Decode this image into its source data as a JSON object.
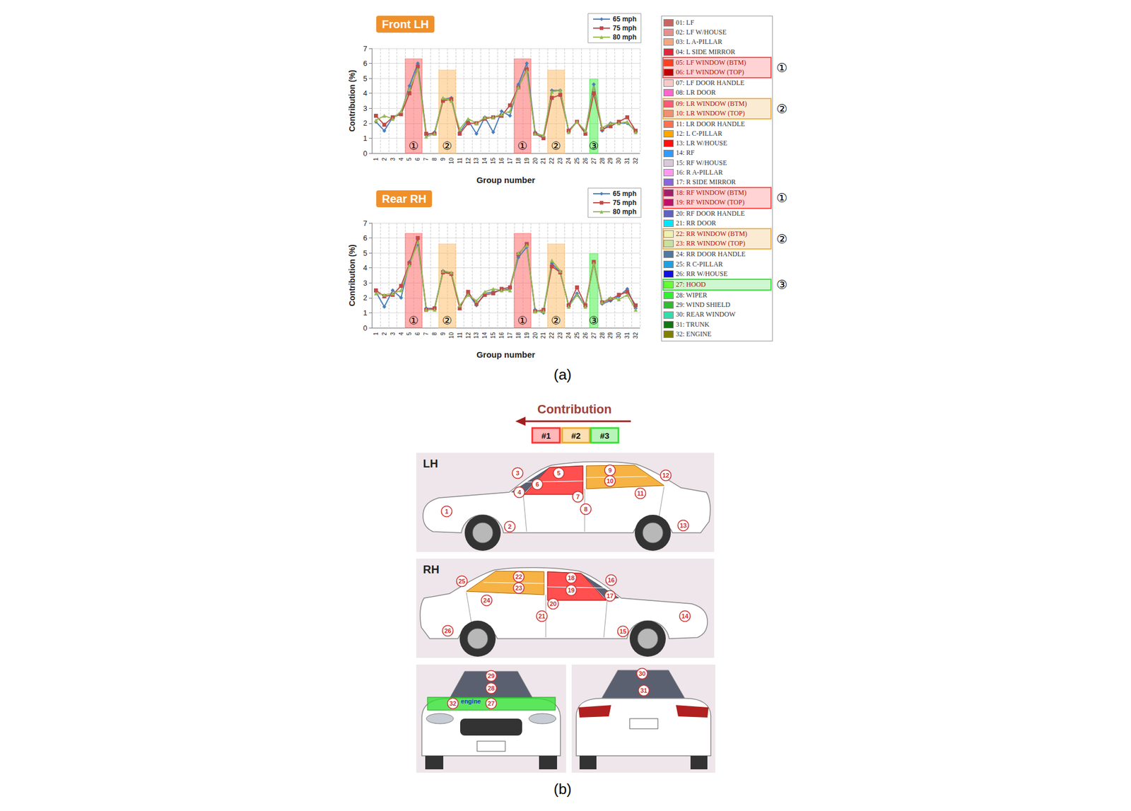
{
  "chart_data": [
    {
      "type": "line",
      "title": "Front LH",
      "xlabel": "Group number",
      "ylabel": "Contribution (%)",
      "categories": [
        "1",
        "2",
        "3",
        "4",
        "5",
        "6",
        "7",
        "8",
        "9",
        "10",
        "11",
        "12",
        "13",
        "14",
        "15",
        "16",
        "17",
        "18",
        "19",
        "20",
        "21",
        "22",
        "23",
        "24",
        "25",
        "26",
        "27",
        "28",
        "29",
        "30",
        "31",
        "32"
      ],
      "series": [
        {
          "name": "65 mph",
          "color": "#4a7ebb",
          "marker": "diamond",
          "values": [
            2.1,
            1.5,
            2.4,
            2.7,
            4.5,
            6.0,
            1.2,
            1.4,
            3.6,
            3.7,
            1.4,
            2.2,
            1.3,
            2.4,
            1.4,
            2.8,
            2.5,
            4.6,
            6.0,
            1.4,
            1.1,
            4.2,
            4.2,
            1.5,
            2.1,
            1.4,
            4.6,
            1.5,
            2.0,
            2.0,
            2.0,
            1.5
          ]
        },
        {
          "name": "75 mph",
          "color": "#be4b48",
          "marker": "square",
          "values": [
            2.5,
            1.9,
            2.4,
            2.6,
            4.0,
            5.8,
            1.3,
            1.3,
            3.5,
            3.6,
            1.3,
            2.0,
            2.0,
            2.3,
            2.4,
            2.5,
            3.2,
            4.4,
            5.6,
            1.3,
            1.0,
            3.7,
            3.9,
            1.5,
            2.1,
            1.3,
            4.0,
            1.6,
            1.8,
            2.1,
            2.4,
            1.5
          ]
        },
        {
          "name": "80 mph",
          "color": "#98b954",
          "marker": "triangle",
          "values": [
            2.2,
            2.5,
            2.3,
            2.8,
            4.3,
            5.6,
            1.1,
            1.3,
            3.7,
            3.5,
            1.6,
            2.3,
            2.0,
            2.4,
            2.4,
            2.6,
            2.8,
            4.4,
            5.5,
            1.3,
            1.2,
            4.1,
            4.2,
            1.4,
            2.1,
            1.5,
            4.4,
            1.7,
            2.0,
            2.0,
            2.1,
            1.4
          ]
        }
      ],
      "ylim": [
        0,
        7
      ],
      "yticks": [
        0,
        1,
        2,
        3,
        4,
        5,
        6,
        7
      ],
      "grid": true,
      "legend": "top-right",
      "highlights": [
        {
          "label": "①",
          "from": "5",
          "to": "6",
          "top": 6.3,
          "color": "#ff6b6b"
        },
        {
          "label": "②",
          "from": "9",
          "to": "10",
          "top": 5.55,
          "color": "#ffc070"
        },
        {
          "label": "①",
          "from": "18",
          "to": "19",
          "top": 6.3,
          "color": "#ff6b6b"
        },
        {
          "label": "②",
          "from": "22",
          "to": "23",
          "top": 5.55,
          "color": "#ffc070"
        },
        {
          "label": "③",
          "from": "27",
          "to": "27",
          "top": 4.95,
          "color": "#4cf04c"
        }
      ]
    },
    {
      "type": "line",
      "title": "Rear RH",
      "xlabel": "Group number",
      "ylabel": "Contribution (%)",
      "categories": [
        "1",
        "2",
        "3",
        "4",
        "5",
        "6",
        "7",
        "8",
        "9",
        "10",
        "11",
        "12",
        "13",
        "14",
        "15",
        "16",
        "17",
        "18",
        "19",
        "20",
        "21",
        "22",
        "23",
        "24",
        "25",
        "26",
        "27",
        "28",
        "29",
        "30",
        "31",
        "32"
      ],
      "series": [
        {
          "name": "65 mph",
          "color": "#4a7ebb",
          "marker": "diamond",
          "values": [
            2.4,
            1.4,
            2.5,
            2.0,
            4.4,
            5.6,
            1.3,
            1.3,
            3.8,
            3.6,
            1.4,
            2.3,
            1.5,
            2.3,
            2.4,
            2.5,
            2.6,
            4.7,
            5.4,
            1.2,
            1.0,
            4.3,
            3.7,
            1.5,
            2.3,
            1.4,
            4.3,
            1.6,
            1.8,
            2.1,
            2.6,
            1.3
          ]
        },
        {
          "name": "75 mph",
          "color": "#be4b48",
          "marker": "square",
          "values": [
            2.5,
            2.1,
            2.2,
            2.8,
            4.3,
            6.0,
            1.2,
            1.3,
            3.7,
            3.6,
            1.3,
            2.4,
            1.6,
            2.2,
            2.3,
            2.6,
            2.7,
            4.9,
            5.6,
            1.1,
            1.2,
            4.1,
            3.7,
            1.5,
            2.7,
            1.5,
            4.4,
            1.7,
            1.9,
            2.2,
            2.4,
            1.5
          ]
        },
        {
          "name": "80 mph",
          "color": "#98b954",
          "marker": "triangle",
          "values": [
            2.3,
            2.2,
            2.3,
            2.5,
            4.2,
            5.7,
            1.2,
            1.2,
            3.8,
            3.7,
            1.5,
            2.2,
            1.8,
            2.4,
            2.6,
            2.5,
            2.5,
            5.0,
            5.5,
            1.1,
            1.1,
            4.5,
            3.8,
            1.4,
            2.2,
            1.4,
            4.3,
            1.7,
            2.0,
            1.9,
            2.2,
            1.2
          ]
        }
      ],
      "ylim": [
        0,
        7
      ],
      "yticks": [
        0,
        1,
        2,
        3,
        4,
        5,
        6,
        7
      ],
      "grid": true,
      "legend": "top-right",
      "highlights": [
        {
          "label": "①",
          "from": "5",
          "to": "6",
          "top": 6.3,
          "color": "#ff6b6b"
        },
        {
          "label": "②",
          "from": "9",
          "to": "10",
          "top": 5.6,
          "color": "#ffc070"
        },
        {
          "label": "①",
          "from": "18",
          "to": "19",
          "top": 6.3,
          "color": "#ff6b6b"
        },
        {
          "label": "②",
          "from": "22",
          "to": "23",
          "top": 5.6,
          "color": "#ffc070"
        },
        {
          "label": "③",
          "from": "27",
          "to": "27",
          "top": 4.95,
          "color": "#4cf04c"
        }
      ]
    }
  ],
  "group_legend": {
    "items": [
      {
        "label": "01: LF",
        "color": "#c86464"
      },
      {
        "label": "02: LF W/HOUSE",
        "color": "#e58f8f"
      },
      {
        "label": "03: L A-PILLAR",
        "color": "#f4a582"
      },
      {
        "label": "04: L SIDE MIRROR",
        "color": "#e0283c"
      },
      {
        "label": "05: LF WINDOW (BTM)",
        "color": "#ff4020"
      },
      {
        "label": "06: LF WINDOW (TOP)",
        "color": "#c00000"
      },
      {
        "label": "07: LF DOOR HANDLE",
        "color": "#f8c8c8"
      },
      {
        "label": "08: LR DOOR",
        "color": "#ff66cc"
      },
      {
        "label": "09: LR WINDOW (BTM)",
        "color": "#ff5a78"
      },
      {
        "label": "10: LR WINDOW (TOP)",
        "color": "#f09070"
      },
      {
        "label": "11: LR DOOR HANDLE",
        "color": "#ff7050"
      },
      {
        "label": "12: L C-PILLAR",
        "color": "#ffa500"
      },
      {
        "label": "13: LR W/HOUSE",
        "color": "#ff1010"
      },
      {
        "label": "14: RF",
        "color": "#3399ff"
      },
      {
        "label": "15: RF W/HOUSE",
        "color": "#d8c8d8"
      },
      {
        "label": "16: R A-PILLAR",
        "color": "#ff99ee"
      },
      {
        "label": "17: R SIDE MIRROR",
        "color": "#8866dd"
      },
      {
        "label": "18: RF WINDOW (BTM)",
        "color": "#a0206a"
      },
      {
        "label": "19: RF WINDOW (TOP)",
        "color": "#c0106a"
      },
      {
        "label": "20: RF DOOR HANDLE",
        "color": "#6060c0"
      },
      {
        "label": "21: RR DOOR",
        "color": "#00e5ff"
      },
      {
        "label": "22: RR WINDOW (BTM)",
        "color": "#f0f0b0"
      },
      {
        "label": "23: RR WINDOW (TOP)",
        "color": "#c8e0a0"
      },
      {
        "label": "24: RR DOOR HANDLE",
        "color": "#5078a0"
      },
      {
        "label": "25: R C-PILLAR",
        "color": "#20a0e0"
      },
      {
        "label": "26: RR W/HOUSE",
        "color": "#1010e0"
      },
      {
        "label": "27: HOOD",
        "color": "#66ff33"
      },
      {
        "label": "28: WIPER",
        "color": "#33ee33"
      },
      {
        "label": "29: WIND SHIELD",
        "color": "#33bb33"
      },
      {
        "label": "30: REAR WINDOW",
        "color": "#33ddaa"
      },
      {
        "label": "31: TRUNK",
        "color": "#117711"
      },
      {
        "label": "32: ENGINE",
        "color": "#808000"
      }
    ],
    "highlights": [
      {
        "label": "①",
        "color": "#ff5050",
        "items": [
          "05: LF WINDOW (BTM)",
          "06: LF WINDOW (TOP)"
        ]
      },
      {
        "label": "②",
        "color": "#f0b050",
        "items": [
          "09: LR WINDOW (BTM)",
          "10: LR WINDOW (TOP)"
        ]
      },
      {
        "label": "①",
        "color": "#ff5050",
        "items": [
          "18: RF WINDOW (BTM)",
          "19: RF WINDOW (TOP)"
        ]
      },
      {
        "label": "②",
        "color": "#f0b050",
        "items": [
          "22: RR WINDOW (BTM)",
          "23: RR WINDOW (TOP)"
        ]
      },
      {
        "label": "③",
        "color": "#40e040",
        "items": [
          "27: HOOD"
        ]
      }
    ]
  },
  "part_b": {
    "header": "Contribution",
    "ranks": [
      {
        "label": "#1",
        "color": "#ff3030"
      },
      {
        "label": "#2",
        "color": "#f5a623"
      },
      {
        "label": "#3",
        "color": "#33e033"
      }
    ],
    "lh": {
      "label": "LH",
      "markers": [
        1,
        2,
        3,
        4,
        5,
        6,
        7,
        8,
        9,
        10,
        11,
        12,
        13
      ]
    },
    "rh": {
      "label": "RH",
      "markers": [
        25,
        22,
        23,
        24,
        18,
        19,
        16,
        17,
        20,
        21,
        14,
        15,
        26
      ]
    },
    "front": {
      "note": "engine",
      "markers": [
        29,
        28,
        32,
        27
      ]
    },
    "rear": {
      "markers": [
        30,
        31
      ]
    }
  },
  "captions": [
    "(a)",
    "(b)"
  ]
}
